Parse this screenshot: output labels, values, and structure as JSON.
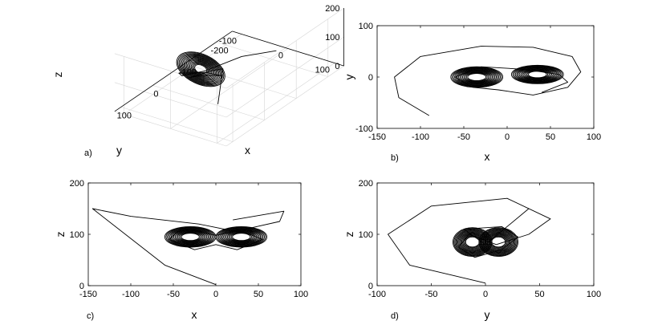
{
  "chart_data": [
    {
      "type": "line",
      "panel": "a)",
      "projection": "3d",
      "xlabel": "x",
      "ylabel": "y",
      "zlabel": "z",
      "xlim": [
        -250,
        120
      ],
      "ylim": [
        -120,
        120
      ],
      "zlim": [
        0,
        200
      ],
      "xticks": [
        "-200",
        "-100",
        "0",
        "100"
      ],
      "yticks": [
        "100",
        "0",
        "-100"
      ],
      "zticks": [
        "0",
        "100",
        "200"
      ],
      "series": [
        {
          "values": [
            [
              -140,
              50,
              100
            ],
            [
              -60,
              30,
              130
            ],
            [
              10,
              0,
              118
            ],
            [
              40,
              -30,
              108
            ],
            [
              20,
              -50,
              92
            ],
            [
              -20,
              -20,
              80
            ],
            [
              -10,
              20,
              96
            ],
            [
              20,
              0,
              110
            ],
            [
              30,
              -20,
              100
            ],
            [
              -20,
              -10,
              90
            ],
            [
              -30,
              10,
              100
            ],
            [
              0,
              20,
              5
            ]
          ]
        }
      ]
    },
    {
      "type": "line",
      "panel": "b)",
      "xlabel": "x",
      "ylabel": "y",
      "xlim": [
        -150,
        100
      ],
      "ylim": [
        -100,
        100
      ],
      "xticks": [
        "-150",
        "-100",
        "-50",
        "0",
        "50",
        "100"
      ],
      "yticks": [
        "-100",
        "0",
        "100"
      ],
      "series": [
        {
          "values": [
            [
              -90,
              -75
            ],
            [
              -125,
              -40
            ],
            [
              -130,
              0
            ],
            [
              -100,
              40
            ],
            [
              -30,
              60
            ],
            [
              30,
              58
            ],
            [
              75,
              40
            ],
            [
              85,
              10
            ],
            [
              70,
              -20
            ],
            [
              30,
              -35
            ],
            [
              -10,
              -25
            ],
            [
              -40,
              -20
            ],
            [
              -60,
              0
            ],
            [
              -30,
              20
            ],
            [
              20,
              15
            ],
            [
              60,
              5
            ],
            [
              70,
              -10
            ],
            [
              40,
              -30
            ]
          ]
        }
      ]
    },
    {
      "type": "line",
      "panel": "c)",
      "xlabel": "x",
      "ylabel": "z",
      "xlim": [
        -150,
        100
      ],
      "ylim": [
        0,
        200
      ],
      "xticks": [
        "-150",
        "-100",
        "-50",
        "0",
        "50",
        "100"
      ],
      "yticks": [
        "0",
        "100",
        "200"
      ],
      "series": [
        {
          "values": [
            [
              0,
              2
            ],
            [
              -60,
              40
            ],
            [
              -145,
              150
            ],
            [
              -100,
              135
            ],
            [
              -20,
              120
            ],
            [
              40,
              100
            ],
            [
              55,
              90
            ],
            [
              25,
              70
            ],
            [
              0,
              80
            ],
            [
              -25,
              70
            ],
            [
              -55,
              90
            ],
            [
              -40,
              112
            ],
            [
              0,
              98
            ],
            [
              40,
              112
            ],
            [
              75,
              125
            ],
            [
              80,
              145
            ],
            [
              20,
              128
            ]
          ]
        }
      ]
    },
    {
      "type": "line",
      "panel": "d)",
      "xlabel": "y",
      "ylabel": "z",
      "xlim": [
        -100,
        100
      ],
      "ylim": [
        0,
        200
      ],
      "xticks": [
        "-100",
        "-50",
        "0",
        "50",
        "100"
      ],
      "yticks": [
        "0",
        "100",
        "200"
      ],
      "series": [
        {
          "values": [
            [
              0,
              5
            ],
            [
              -70,
              40
            ],
            [
              -90,
              100
            ],
            [
              -50,
              155
            ],
            [
              20,
              170
            ],
            [
              60,
              130
            ],
            [
              40,
              100
            ],
            [
              10,
              80
            ],
            [
              -15,
              100
            ],
            [
              -25,
              75
            ],
            [
              -10,
              55
            ],
            [
              15,
              70
            ],
            [
              30,
              95
            ],
            [
              15,
              115
            ],
            [
              -20,
              110
            ],
            [
              0,
              80
            ],
            [
              40,
              150
            ]
          ]
        }
      ]
    }
  ]
}
